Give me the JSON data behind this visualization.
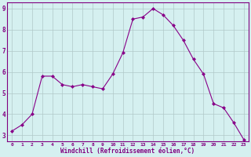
{
  "x": [
    0,
    1,
    2,
    3,
    4,
    5,
    6,
    7,
    8,
    9,
    10,
    11,
    12,
    13,
    14,
    15,
    16,
    17,
    18,
    19,
    20,
    21,
    22,
    23
  ],
  "y": [
    3.2,
    3.5,
    4.0,
    5.8,
    5.8,
    5.4,
    5.3,
    5.4,
    5.3,
    5.2,
    5.9,
    6.9,
    8.5,
    8.6,
    9.0,
    8.7,
    8.2,
    7.5,
    6.6,
    5.9,
    4.5,
    4.3,
    3.6,
    2.8
  ],
  "line_color": "#880088",
  "marker": "D",
  "marker_size": 2.0,
  "bg_color": "#d5f0f0",
  "grid_color": "#b0c8c8",
  "xlabel": "Windchill (Refroidissement éolien,°C)",
  "xlabel_color": "#800080",
  "tick_color": "#800080",
  "ylim_min": 2.7,
  "ylim_max": 9.3,
  "xlim_min": -0.5,
  "xlim_max": 23.5,
  "yticks": [
    3,
    4,
    5,
    6,
    7,
    8,
    9
  ],
  "xticks": [
    0,
    1,
    2,
    3,
    4,
    5,
    6,
    7,
    8,
    9,
    10,
    11,
    12,
    13,
    14,
    15,
    16,
    17,
    18,
    19,
    20,
    21,
    22,
    23
  ],
  "spine_color": "#800080"
}
